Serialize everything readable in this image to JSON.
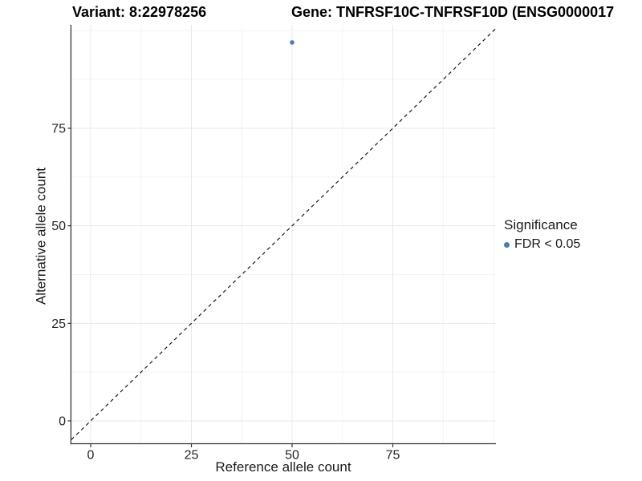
{
  "chart_data": {
    "type": "scatter",
    "title_left": "Variant: 8:22978256",
    "title_right": "Gene: TNFRSF10C-TNFRSF10D (ENSG0000017",
    "xlabel": "Reference allele count",
    "ylabel": "Alternative allele count",
    "x_ticks": [
      0,
      25,
      50,
      75
    ],
    "y_ticks": [
      0,
      25,
      50,
      75
    ],
    "x_minor_ticks": [
      12.5,
      37.5,
      62.5,
      87.5,
      100
    ],
    "y_minor_ticks": [
      12.5,
      37.5,
      62.5,
      87.5,
      100
    ],
    "xlim": [
      -4.8,
      100.5
    ],
    "ylim": [
      -5.9,
      101.5
    ],
    "grid": true,
    "series": [
      {
        "name": "FDR < 0.05",
        "color": "#4d7cb3",
        "points": [
          {
            "x": 50,
            "y": 97
          }
        ]
      }
    ],
    "reference_line": {
      "equation": "y = x",
      "style": "dashed"
    },
    "legend": {
      "title": "Significance",
      "position": "right",
      "items": [
        {
          "label": "FDR < 0.05",
          "color": "#4d7cb3"
        }
      ]
    }
  },
  "colors": {
    "background": "#ffffff",
    "point": "#4d7cb3",
    "grid_major": "#e8e8e8",
    "grid_minor": "#f3f3f3",
    "axis_line": "#333333",
    "tick_mark": "#333333",
    "dashed_line": "#1a1a1a"
  }
}
